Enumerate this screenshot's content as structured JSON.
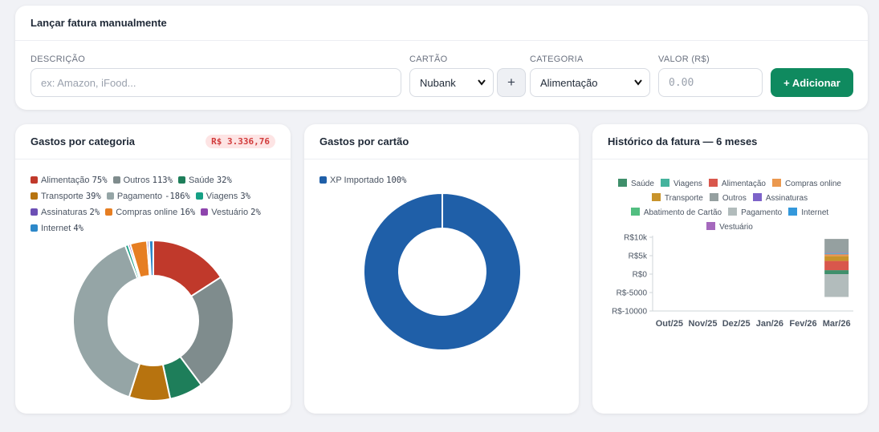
{
  "entry": {
    "title": "Lançar fatura manualmente",
    "description_label": "DESCRIÇÃO",
    "description_placeholder": "ex: Amazon, iFood...",
    "card_label": "CARTÃO",
    "card_value": "Nubank",
    "plus_label": "+",
    "category_label": "CATEGORIA",
    "category_value": "Alimentação",
    "value_label": "VALOR (R$)",
    "value_placeholder": "0.00",
    "add_label": "+ Adicionar",
    "accent_color": "#0f8a5f"
  },
  "category_card": {
    "title": "Gastos por categoria",
    "total_badge": "R$ 3.336,76",
    "chart_data": {
      "type": "pie",
      "categories": [
        "Alimentação",
        "Outros",
        "Saúde",
        "Transporte",
        "Pagamento",
        "Viagens",
        "Assinaturas",
        "Compras online",
        "Vestuário",
        "Internet"
      ],
      "values": [
        75,
        113,
        32,
        39,
        -186,
        3,
        2,
        16,
        2,
        4
      ],
      "labels": [
        "75%",
        "113%",
        "32%",
        "39%",
        "-186%",
        "3%",
        "2%",
        "16%",
        "2%",
        "4%"
      ],
      "colors": [
        "#c0392b",
        "#7f8c8d",
        "#1e7e5a",
        "#b7730f",
        "#95a5a6",
        "#16a085",
        "#6c4fb5",
        "#e67e22",
        "#8e44ad",
        "#2d88c9"
      ]
    }
  },
  "card_card": {
    "title": "Gastos por cartão",
    "chart_data": {
      "type": "pie",
      "categories": [
        "XP Importado"
      ],
      "values": [
        100
      ],
      "labels": [
        "100%"
      ],
      "colors": [
        "#1f5fa8"
      ]
    }
  },
  "history_card": {
    "title": "Histórico da fatura — 6 meses",
    "chart_data": {
      "type": "bar",
      "stacked": true,
      "categories": [
        "Out/25",
        "Nov/25",
        "Dez/25",
        "Jan/26",
        "Fev/26",
        "Mar/26"
      ],
      "y_ticks": [
        "R$10k",
        "R$5k",
        "R$0",
        "R$-5000",
        "R$-10000"
      ],
      "ylim": [
        -10000,
        10000
      ],
      "legend_position": "top",
      "series": [
        {
          "name": "Saúde",
          "color": "#3f8f6b",
          "values": [
            0,
            0,
            0,
            0,
            0,
            1070
          ]
        },
        {
          "name": "Viagens",
          "color": "#45b39d",
          "values": [
            0,
            0,
            0,
            0,
            0,
            100
          ]
        },
        {
          "name": "Alimentação",
          "color": "#d9574c",
          "values": [
            0,
            0,
            0,
            0,
            0,
            2500
          ]
        },
        {
          "name": "Compras online",
          "color": "#eb984e",
          "values": [
            0,
            0,
            0,
            0,
            0,
            530
          ]
        },
        {
          "name": "Transporte",
          "color": "#c8932b",
          "values": [
            0,
            0,
            0,
            0,
            0,
            1300
          ]
        },
        {
          "name": "Outros",
          "color": "#95a0a0",
          "values": [
            0,
            0,
            0,
            0,
            0,
            3770
          ]
        },
        {
          "name": "Assinaturas",
          "color": "#7d63c9",
          "values": [
            0,
            0,
            0,
            0,
            0,
            70
          ]
        },
        {
          "name": "Abatimento de Cartão",
          "color": "#52be80",
          "values": [
            0,
            0,
            0,
            0,
            0,
            0
          ]
        },
        {
          "name": "Pagamento",
          "color": "#b2bcbc",
          "values": [
            0,
            0,
            0,
            0,
            0,
            -6200
          ]
        },
        {
          "name": "Internet",
          "color": "#3498db",
          "values": [
            0,
            0,
            0,
            0,
            0,
            130
          ]
        },
        {
          "name": "Vestuário",
          "color": "#a569bd",
          "values": [
            0,
            0,
            0,
            0,
            0,
            70
          ]
        }
      ]
    }
  }
}
